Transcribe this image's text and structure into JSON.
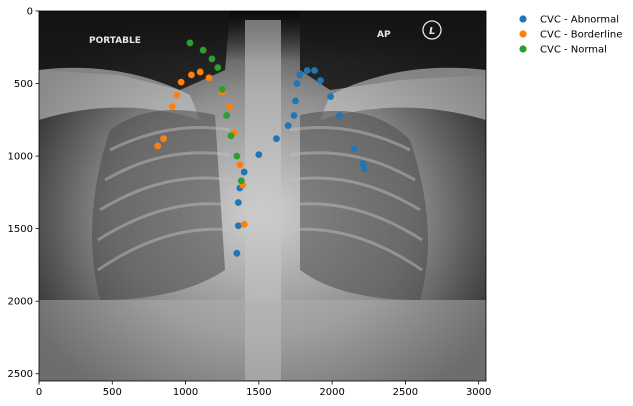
{
  "chart_data": {
    "type": "scatter",
    "background_image": "chest x-ray (portable AP)",
    "image_labels": {
      "portable": "PORTABLE",
      "ap": "AP",
      "side_marker": "L"
    },
    "xlim": [
      0,
      3050
    ],
    "ylim": [
      2550,
      0
    ],
    "x_ticks": [
      0,
      500,
      1000,
      1500,
      2000,
      2500,
      3000
    ],
    "y_ticks": [
      0,
      500,
      1000,
      1500,
      2000,
      2500
    ],
    "legend_position": "outside-top-right",
    "series": [
      {
        "name": "CVC - Abnormal",
        "color": "#1f77b4",
        "points": [
          [
            1350,
            1670
          ],
          [
            1360,
            1480
          ],
          [
            1360,
            1320
          ],
          [
            1370,
            1220
          ],
          [
            1400,
            1110
          ],
          [
            1500,
            990
          ],
          [
            1620,
            880
          ],
          [
            1700,
            790
          ],
          [
            1740,
            720
          ],
          [
            1750,
            620
          ],
          [
            1760,
            500
          ],
          [
            1780,
            440
          ],
          [
            1830,
            410
          ],
          [
            1880,
            410
          ],
          [
            1920,
            480
          ],
          [
            1990,
            590
          ],
          [
            2050,
            720
          ],
          [
            2150,
            950
          ],
          [
            2210,
            1050
          ],
          [
            2220,
            1090
          ]
        ]
      },
      {
        "name": "CVC - Borderline",
        "color": "#ff7f0e",
        "points": [
          [
            810,
            930
          ],
          [
            850,
            880
          ],
          [
            910,
            660
          ],
          [
            940,
            580
          ],
          [
            970,
            490
          ],
          [
            1040,
            440
          ],
          [
            1100,
            420
          ],
          [
            1160,
            460
          ],
          [
            1250,
            560
          ],
          [
            1300,
            660
          ],
          [
            1330,
            840
          ],
          [
            1370,
            1060
          ],
          [
            1390,
            1200
          ],
          [
            1400,
            1470
          ]
        ]
      },
      {
        "name": "CVC - Normal",
        "color": "#2ca02c",
        "points": [
          [
            1030,
            220
          ],
          [
            1120,
            270
          ],
          [
            1180,
            330
          ],
          [
            1220,
            390
          ],
          [
            1250,
            540
          ],
          [
            1280,
            720
          ],
          [
            1310,
            860
          ],
          [
            1350,
            1000
          ],
          [
            1380,
            1170
          ]
        ]
      }
    ]
  }
}
